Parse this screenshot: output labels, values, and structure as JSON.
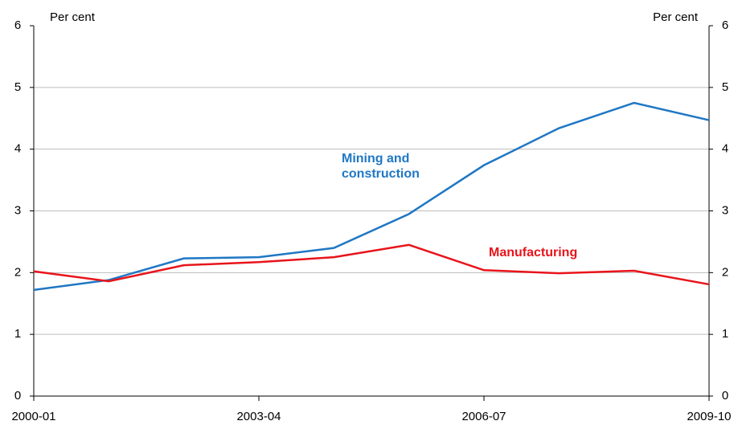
{
  "chart_data": {
    "type": "line",
    "y_label": "Per cent",
    "y2_label": "Per cent",
    "categories": [
      "2000-01",
      null,
      null,
      "2003-04",
      null,
      null,
      "2006-07",
      null,
      null,
      "2009-10"
    ],
    "series": [
      {
        "name": "Mining and construction",
        "color": "#1f77c4",
        "values": [
          1.72,
          1.88,
          2.23,
          2.25,
          2.4,
          2.95,
          3.74,
          4.34,
          4.75,
          4.47
        ]
      },
      {
        "name": "Manufacturing",
        "color": "#e8141b",
        "values": [
          2.02,
          1.86,
          2.12,
          2.17,
          2.25,
          2.45,
          2.04,
          1.99,
          2.03,
          1.81
        ]
      }
    ],
    "ylim": [
      0,
      6
    ],
    "yticks": [
      0,
      1,
      2,
      3,
      4,
      5,
      6
    ],
    "y2lim": [
      0,
      6
    ],
    "y2ticks": [
      0,
      1,
      2,
      3,
      4,
      5,
      6
    ],
    "grid": true
  }
}
